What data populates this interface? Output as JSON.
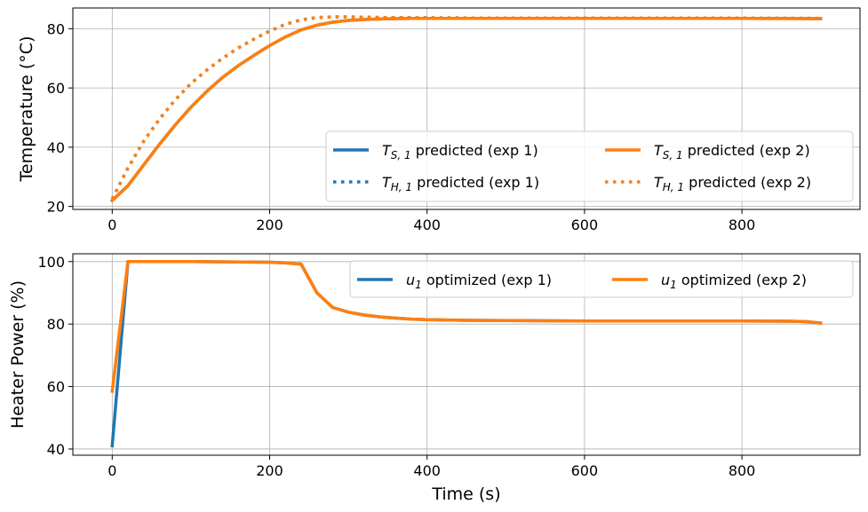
{
  "chart_data": [
    {
      "type": "line",
      "title": "",
      "xlabel": "",
      "ylabel": "Temperature (°C)",
      "xlim": [
        -50,
        950
      ],
      "ylim": [
        19,
        87
      ],
      "xticks": [
        0,
        200,
        400,
        600,
        800
      ],
      "yticks": [
        20,
        40,
        60,
        80
      ],
      "grid": true,
      "legend_position": "lower-right",
      "legend_columns": 2,
      "series": [
        {
          "name": "T_{S,1} predicted (exp 1)",
          "label_main": "T",
          "label_sub": "S, 1",
          "label_rest": " predicted (exp 1)",
          "color": "#1f77b4",
          "style": "solid",
          "x": [
            0,
            20,
            40,
            60,
            80,
            100,
            120,
            140,
            160,
            180,
            200,
            220,
            240,
            260,
            280,
            300,
            320,
            340,
            360,
            380,
            400,
            500,
            600,
            700,
            800,
            900
          ],
          "y": [
            22.0,
            27.0,
            34.0,
            41.0,
            47.5,
            53.5,
            58.8,
            63.5,
            67.5,
            71.0,
            74.3,
            77.2,
            79.6,
            81.2,
            82.2,
            82.8,
            83.1,
            83.3,
            83.4,
            83.5,
            83.5,
            83.5,
            83.5,
            83.5,
            83.5,
            83.4
          ]
        },
        {
          "name": "T_{H,1} predicted (exp 1)",
          "label_main": "T",
          "label_sub": "H, 1",
          "label_rest": " predicted (exp 1)",
          "color": "#1f77b4",
          "style": "dotted",
          "x": [
            0,
            20,
            40,
            60,
            80,
            100,
            120,
            140,
            160,
            180,
            200,
            220,
            240,
            260,
            280,
            300,
            320,
            340,
            360,
            380,
            400,
            500,
            600,
            700,
            800,
            900
          ],
          "y": [
            22.5,
            33.0,
            42.0,
            49.5,
            56.0,
            61.5,
            66.0,
            70.0,
            73.5,
            76.5,
            79.2,
            81.5,
            83.0,
            83.8,
            84.0,
            84.0,
            83.9,
            83.8,
            83.8,
            83.7,
            83.7,
            83.6,
            83.6,
            83.6,
            83.6,
            83.5
          ]
        },
        {
          "name": "T_{S,1} predicted (exp 2)",
          "label_main": "T",
          "label_sub": "S, 1",
          "label_rest": " predicted (exp 2)",
          "color": "#ff7f0e",
          "style": "solid",
          "x": [
            0,
            20,
            40,
            60,
            80,
            100,
            120,
            140,
            160,
            180,
            200,
            220,
            240,
            260,
            280,
            300,
            320,
            340,
            360,
            380,
            400,
            500,
            600,
            700,
            800,
            900
          ],
          "y": [
            22.0,
            27.0,
            34.0,
            41.0,
            47.5,
            53.5,
            58.8,
            63.5,
            67.5,
            71.0,
            74.3,
            77.2,
            79.6,
            81.2,
            82.2,
            82.8,
            83.1,
            83.3,
            83.4,
            83.5,
            83.5,
            83.5,
            83.5,
            83.5,
            83.5,
            83.4
          ]
        },
        {
          "name": "T_{H,1} predicted (exp 2)",
          "label_main": "T",
          "label_sub": "H, 1",
          "label_rest": " predicted (exp 2)",
          "color": "#ff7f0e",
          "style": "dotted",
          "x": [
            0,
            20,
            40,
            60,
            80,
            100,
            120,
            140,
            160,
            180,
            200,
            220,
            240,
            260,
            280,
            300,
            320,
            340,
            360,
            380,
            400,
            500,
            600,
            700,
            800,
            900
          ],
          "y": [
            22.5,
            33.0,
            42.0,
            49.5,
            56.0,
            61.5,
            66.0,
            70.0,
            73.5,
            76.5,
            79.2,
            81.5,
            83.0,
            83.8,
            84.0,
            84.0,
            83.9,
            83.8,
            83.8,
            83.7,
            83.7,
            83.6,
            83.6,
            83.6,
            83.6,
            83.5
          ]
        }
      ]
    },
    {
      "type": "line",
      "title": "",
      "xlabel": "Time (s)",
      "ylabel": "Heater Power (%)",
      "xlim": [
        -50,
        950
      ],
      "ylim": [
        38,
        102.5
      ],
      "xticks": [
        0,
        200,
        400,
        600,
        800
      ],
      "yticks": [
        40,
        60,
        80,
        100
      ],
      "grid": true,
      "legend_position": "top-right",
      "legend_columns": 2,
      "series": [
        {
          "name": "u_1 optimized (exp 1)",
          "label_main": "u",
          "label_sub": "1",
          "label_rest": " optimized (exp 1)",
          "color": "#1f77b4",
          "style": "solid",
          "x": [
            0,
            20,
            40,
            100,
            200,
            220,
            240,
            260,
            280,
            300,
            320,
            340,
            360,
            380,
            400,
            450,
            500,
            600,
            700,
            800,
            860,
            880,
            900
          ],
          "y": [
            41.0,
            100.0,
            100.0,
            100.0,
            99.8,
            99.6,
            99.2,
            90.0,
            85.3,
            83.8,
            82.9,
            82.3,
            81.9,
            81.6,
            81.4,
            81.2,
            81.1,
            81.0,
            81.0,
            81.0,
            80.9,
            80.8,
            80.3
          ]
        },
        {
          "name": "u_1 optimized (exp 2)",
          "label_main": "u",
          "label_sub": "1",
          "label_rest": " optimized (exp 2)",
          "color": "#ff7f0e",
          "style": "solid",
          "x": [
            0,
            20,
            40,
            100,
            200,
            220,
            240,
            260,
            280,
            300,
            320,
            340,
            360,
            380,
            400,
            450,
            500,
            600,
            700,
            800,
            860,
            880,
            900
          ],
          "y": [
            58.5,
            100.0,
            100.0,
            100.0,
            99.8,
            99.6,
            99.2,
            90.0,
            85.3,
            83.8,
            82.9,
            82.3,
            81.9,
            81.6,
            81.4,
            81.2,
            81.1,
            81.0,
            81.0,
            81.0,
            80.9,
            80.8,
            80.3
          ]
        }
      ]
    }
  ]
}
